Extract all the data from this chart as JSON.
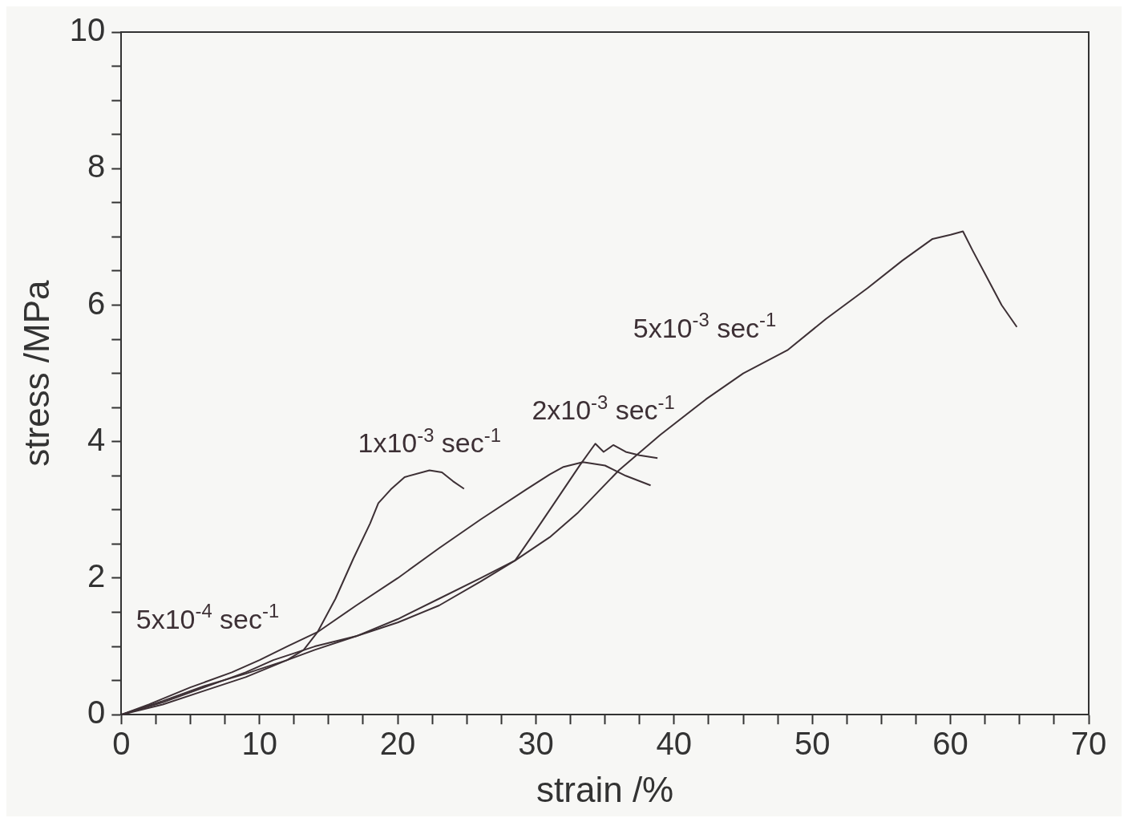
{
  "chart_data": {
    "type": "line",
    "xlabel": "strain /%",
    "ylabel": "stress /MPa",
    "xlim": [
      0,
      70
    ],
    "ylim": [
      0,
      10
    ],
    "xticks": [
      0,
      {
        "value": 2.5,
        "label": null
      },
      {
        "value": 5,
        "label": null
      },
      {
        "value": 7.5,
        "label": null
      },
      10,
      {
        "value": 12.5,
        "label": null
      },
      {
        "value": 15,
        "label": null
      },
      {
        "value": 17.5,
        "label": null
      },
      20,
      {
        "value": 22.5,
        "label": null
      },
      {
        "value": 25,
        "label": null
      },
      {
        "value": 27.5,
        "label": null
      },
      30,
      {
        "value": 32.5,
        "label": null
      },
      {
        "value": 35,
        "label": null
      },
      {
        "value": 37.5,
        "label": null
      },
      40,
      {
        "value": 42.5,
        "label": null
      },
      {
        "value": 45,
        "label": null
      },
      {
        "value": 47.5,
        "label": null
      },
      50,
      {
        "value": 52.5,
        "label": null
      },
      {
        "value": 55,
        "label": null
      },
      {
        "value": 57.5,
        "label": null
      },
      60,
      {
        "value": 62.5,
        "label": null
      },
      {
        "value": 65,
        "label": null
      },
      {
        "value": 67.5,
        "label": null
      },
      70
    ],
    "yticks": [
      0,
      {
        "value": 0.5,
        "label": null
      },
      {
        "value": 1,
        "label": null
      },
      {
        "value": 1.5,
        "label": null
      },
      2,
      {
        "value": 2.5,
        "label": null
      },
      {
        "value": 3,
        "label": null
      },
      {
        "value": 3.5,
        "label": null
      },
      4,
      {
        "value": 4.5,
        "label": null
      },
      {
        "value": 5,
        "label": null
      },
      {
        "value": 5.5,
        "label": null
      },
      6,
      {
        "value": 6.5,
        "label": null
      },
      {
        "value": 7,
        "label": null
      },
      {
        "value": 7.5,
        "label": null
      },
      8,
      {
        "value": 8.5,
        "label": null
      },
      {
        "value": 9,
        "label": null
      },
      {
        "value": 9.5,
        "label": null
      },
      10
    ],
    "grid": false,
    "legend": false,
    "marker": "none",
    "line_style": "solid",
    "series": [
      {
        "name": "5x10$^{-4}$ sec$^{-1}$",
        "color": "#3d3035",
        "x": [
          0,
          2,
          5,
          8,
          10,
          12,
          14.2,
          17,
          20,
          23,
          26,
          29.3,
          31,
          32,
          33.4,
          35,
          36.5,
          38.3
        ],
        "values": [
          0,
          0.15,
          0.4,
          0.62,
          0.8,
          1.0,
          1.21,
          1.6,
          2.0,
          2.44,
          2.86,
          3.3,
          3.52,
          3.63,
          3.7,
          3.65,
          3.5,
          3.36
        ]
      },
      {
        "name": "1x10$^{-3}$ sec$^{-1}$",
        "color": "#3d3035",
        "x": [
          0,
          3,
          6,
          9,
          12,
          13.2,
          14.2,
          15.5,
          16.8,
          18,
          18.6,
          19.5,
          20.5,
          22.3,
          23.2,
          24,
          24.8
        ],
        "values": [
          0,
          0.2,
          0.42,
          0.6,
          0.8,
          0.95,
          1.21,
          1.7,
          2.29,
          2.8,
          3.1,
          3.3,
          3.48,
          3.58,
          3.55,
          3.42,
          3.31
        ]
      },
      {
        "name": "2x10$^{-3}$ sec$^{-1}$",
        "color": "#3d3035",
        "x": [
          0,
          3,
          6,
          9,
          12,
          14,
          17,
          20,
          23,
          26,
          28.5,
          30,
          31.5,
          33.2,
          34.3,
          34.9,
          35.6,
          36.5,
          37.5,
          38.8
        ],
        "values": [
          0,
          0.15,
          0.35,
          0.55,
          0.8,
          0.95,
          1.15,
          1.4,
          1.7,
          2.0,
          2.26,
          2.7,
          3.15,
          3.66,
          3.97,
          3.85,
          3.95,
          3.85,
          3.8,
          3.76
        ]
      },
      {
        "name": "5x10$^{-3}$ sec$^{-1}$",
        "color": "#3d3035",
        "x": [
          0,
          3,
          6,
          9,
          11,
          14,
          17,
          20,
          23,
          26,
          28.5,
          31,
          33,
          36,
          39,
          42.3,
          45,
          48.2,
          51,
          54,
          56.5,
          58.7,
          60,
          60.9,
          61.6,
          62.6,
          63.7,
          64.8
        ],
        "values": [
          0,
          0.18,
          0.4,
          0.62,
          0.8,
          1.0,
          1.15,
          1.35,
          1.6,
          1.95,
          2.26,
          2.6,
          2.95,
          3.58,
          4.1,
          4.62,
          5.0,
          5.34,
          5.8,
          6.25,
          6.65,
          6.97,
          7.03,
          7.08,
          6.8,
          6.42,
          6.0,
          5.68
        ]
      }
    ]
  }
}
